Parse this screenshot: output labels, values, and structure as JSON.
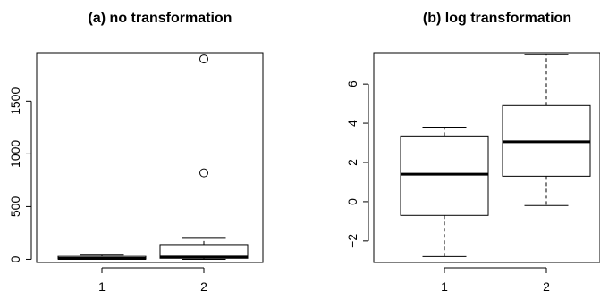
{
  "chart_data": [
    {
      "type": "boxplot",
      "title": "(a) no transformation",
      "categories": [
        "1",
        "2"
      ],
      "yticks": [
        0,
        500,
        1000,
        1500
      ],
      "ylim": [
        -30,
        1960
      ],
      "boxes": [
        {
          "whisker_low": 0,
          "q1": 2,
          "median": 8,
          "q3": 28,
          "whisker_high": 40,
          "outliers": []
        },
        {
          "whisker_low": 0,
          "q1": 10,
          "median": 22,
          "q3": 140,
          "whisker_high": 200,
          "outliers": [
            820,
            1900
          ]
        }
      ]
    },
    {
      "type": "boxplot",
      "title": "(b) log transformation",
      "categories": [
        "1",
        "2"
      ],
      "yticks": [
        -2,
        0,
        2,
        4,
        6
      ],
      "ylim": [
        -3.1,
        7.6
      ],
      "boxes": [
        {
          "whisker_low": -2.8,
          "q1": -0.7,
          "median": 1.4,
          "q3": 3.35,
          "whisker_high": 3.8,
          "outliers": []
        },
        {
          "whisker_low": -0.2,
          "q1": 1.3,
          "median": 3.05,
          "q3": 4.9,
          "whisker_high": 7.5,
          "outliers": []
        }
      ]
    }
  ]
}
